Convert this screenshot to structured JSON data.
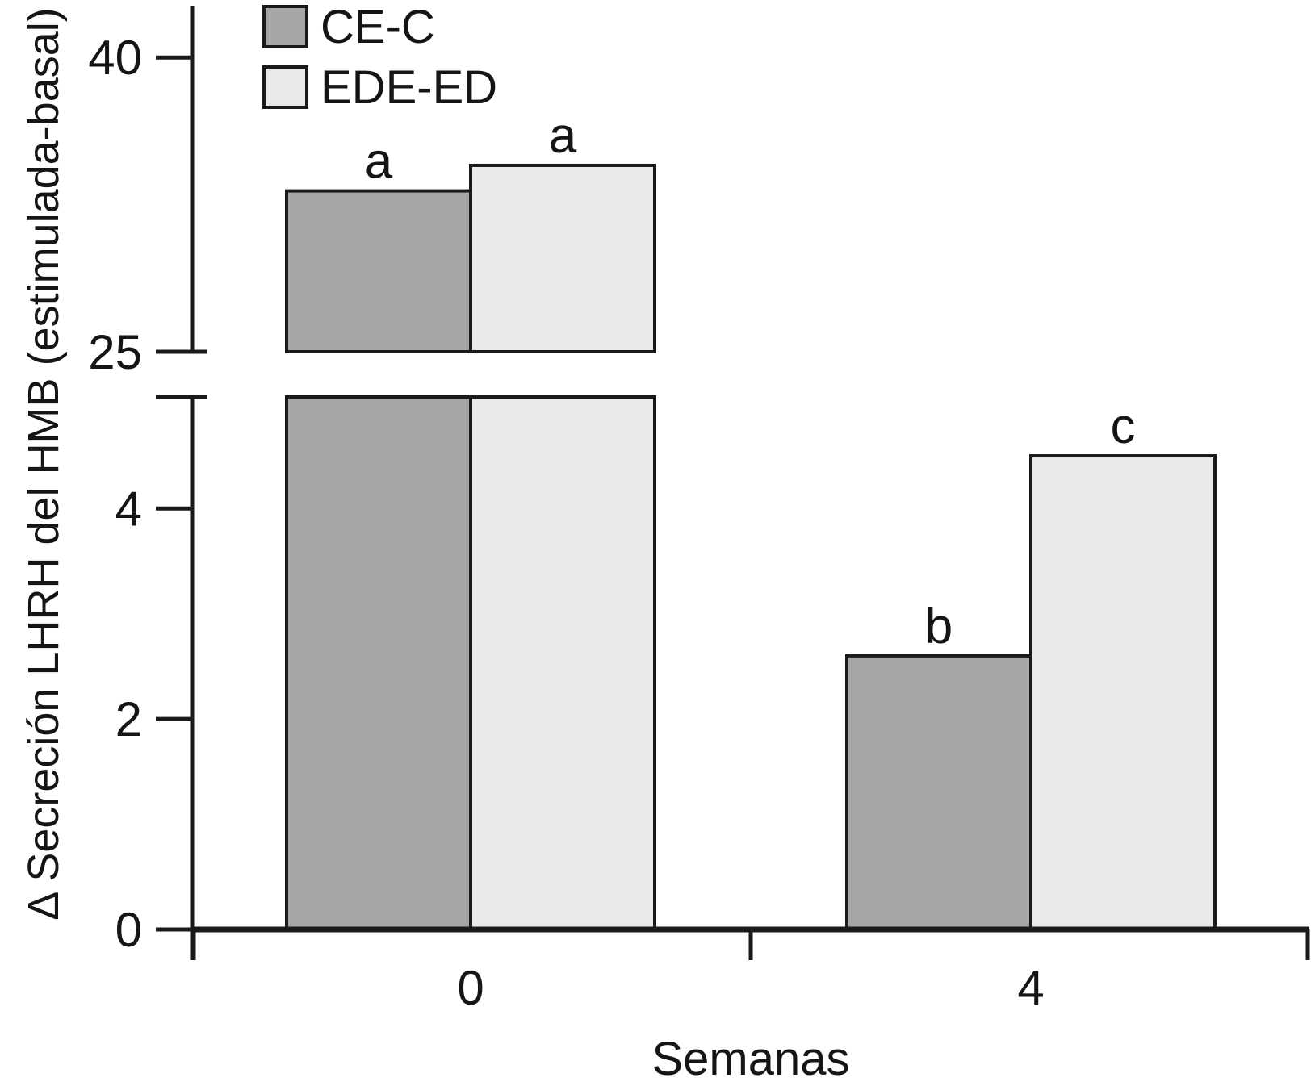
{
  "chart_data": {
    "type": "bar",
    "title": "",
    "xlabel": "Semanas",
    "ylabel": "Δ Secreción LHRH del HMB (estimulada-basal)",
    "categories": [
      "0",
      "4"
    ],
    "series": [
      {
        "name": "CE-C",
        "color": "#a6a6a6",
        "values": [
          33.2,
          2.6
        ],
        "sig_labels": [
          "a",
          "b"
        ]
      },
      {
        "name": "EDE-ED",
        "color": "#e9e9e9",
        "values": [
          34.5,
          4.5
        ],
        "sig_labels": [
          "a",
          "c"
        ]
      }
    ],
    "axis_break": true,
    "upper_axis": {
      "range": [
        25,
        42.6
      ],
      "ticks": [
        {
          "value": 40,
          "label": "40"
        },
        {
          "value": 25,
          "label": "25"
        }
      ]
    },
    "lower_axis": {
      "range": [
        0,
        5.06
      ],
      "ticks": [
        {
          "value": 5.06,
          "label": ""
        },
        {
          "value": 4,
          "label": "4"
        },
        {
          "value": 2,
          "label": "2"
        },
        {
          "value": 0,
          "label": "0"
        }
      ]
    },
    "grid": false,
    "legend_position": "top-left",
    "outline_color": "#1a1a1a",
    "background": "#ffffff"
  },
  "legend": {
    "items": [
      {
        "label": "CE-C",
        "color": "#a6a6a6"
      },
      {
        "label": "EDE-ED",
        "color": "#e9e9e9"
      }
    ]
  }
}
